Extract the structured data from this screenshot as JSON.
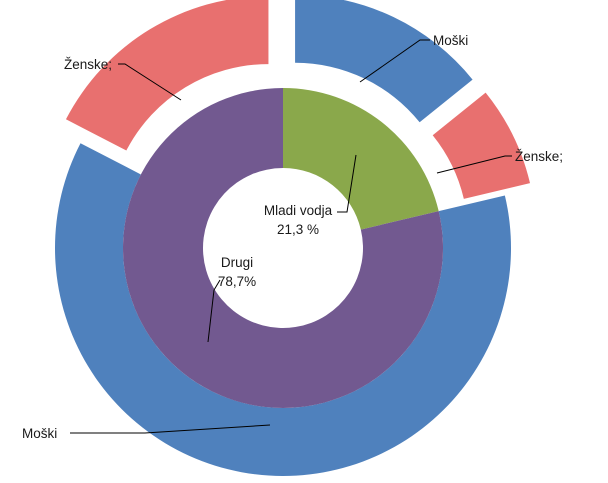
{
  "chart_data": {
    "type": "pie",
    "subtype": "nested-donut",
    "inner_ring": {
      "slices": [
        {
          "name": "Mladi vodja",
          "value": 21.3,
          "label": "21,3 %",
          "color": "#8aa84b"
        },
        {
          "name": "Drugi",
          "value": 78.7,
          "label": "78,7%",
          "color": "#725990"
        }
      ]
    },
    "outer_ring": {
      "slices": [
        {
          "name": "Moški",
          "group": "Mladi vodja",
          "value": 14.2,
          "color": "#4f81bd",
          "exploded": true
        },
        {
          "name": "Ženske;",
          "group": "Mladi vodja",
          "value": 7.1,
          "color": "#e8706f",
          "exploded": true
        },
        {
          "name": "Moški",
          "group": "Drugi",
          "value": 61.3,
          "color": "#4f81bd",
          "exploded": false
        },
        {
          "name": "Ženske;",
          "group": "Drugi",
          "value": 17.4,
          "color": "#e8706f",
          "exploded": true
        }
      ]
    },
    "legend": "none"
  }
}
